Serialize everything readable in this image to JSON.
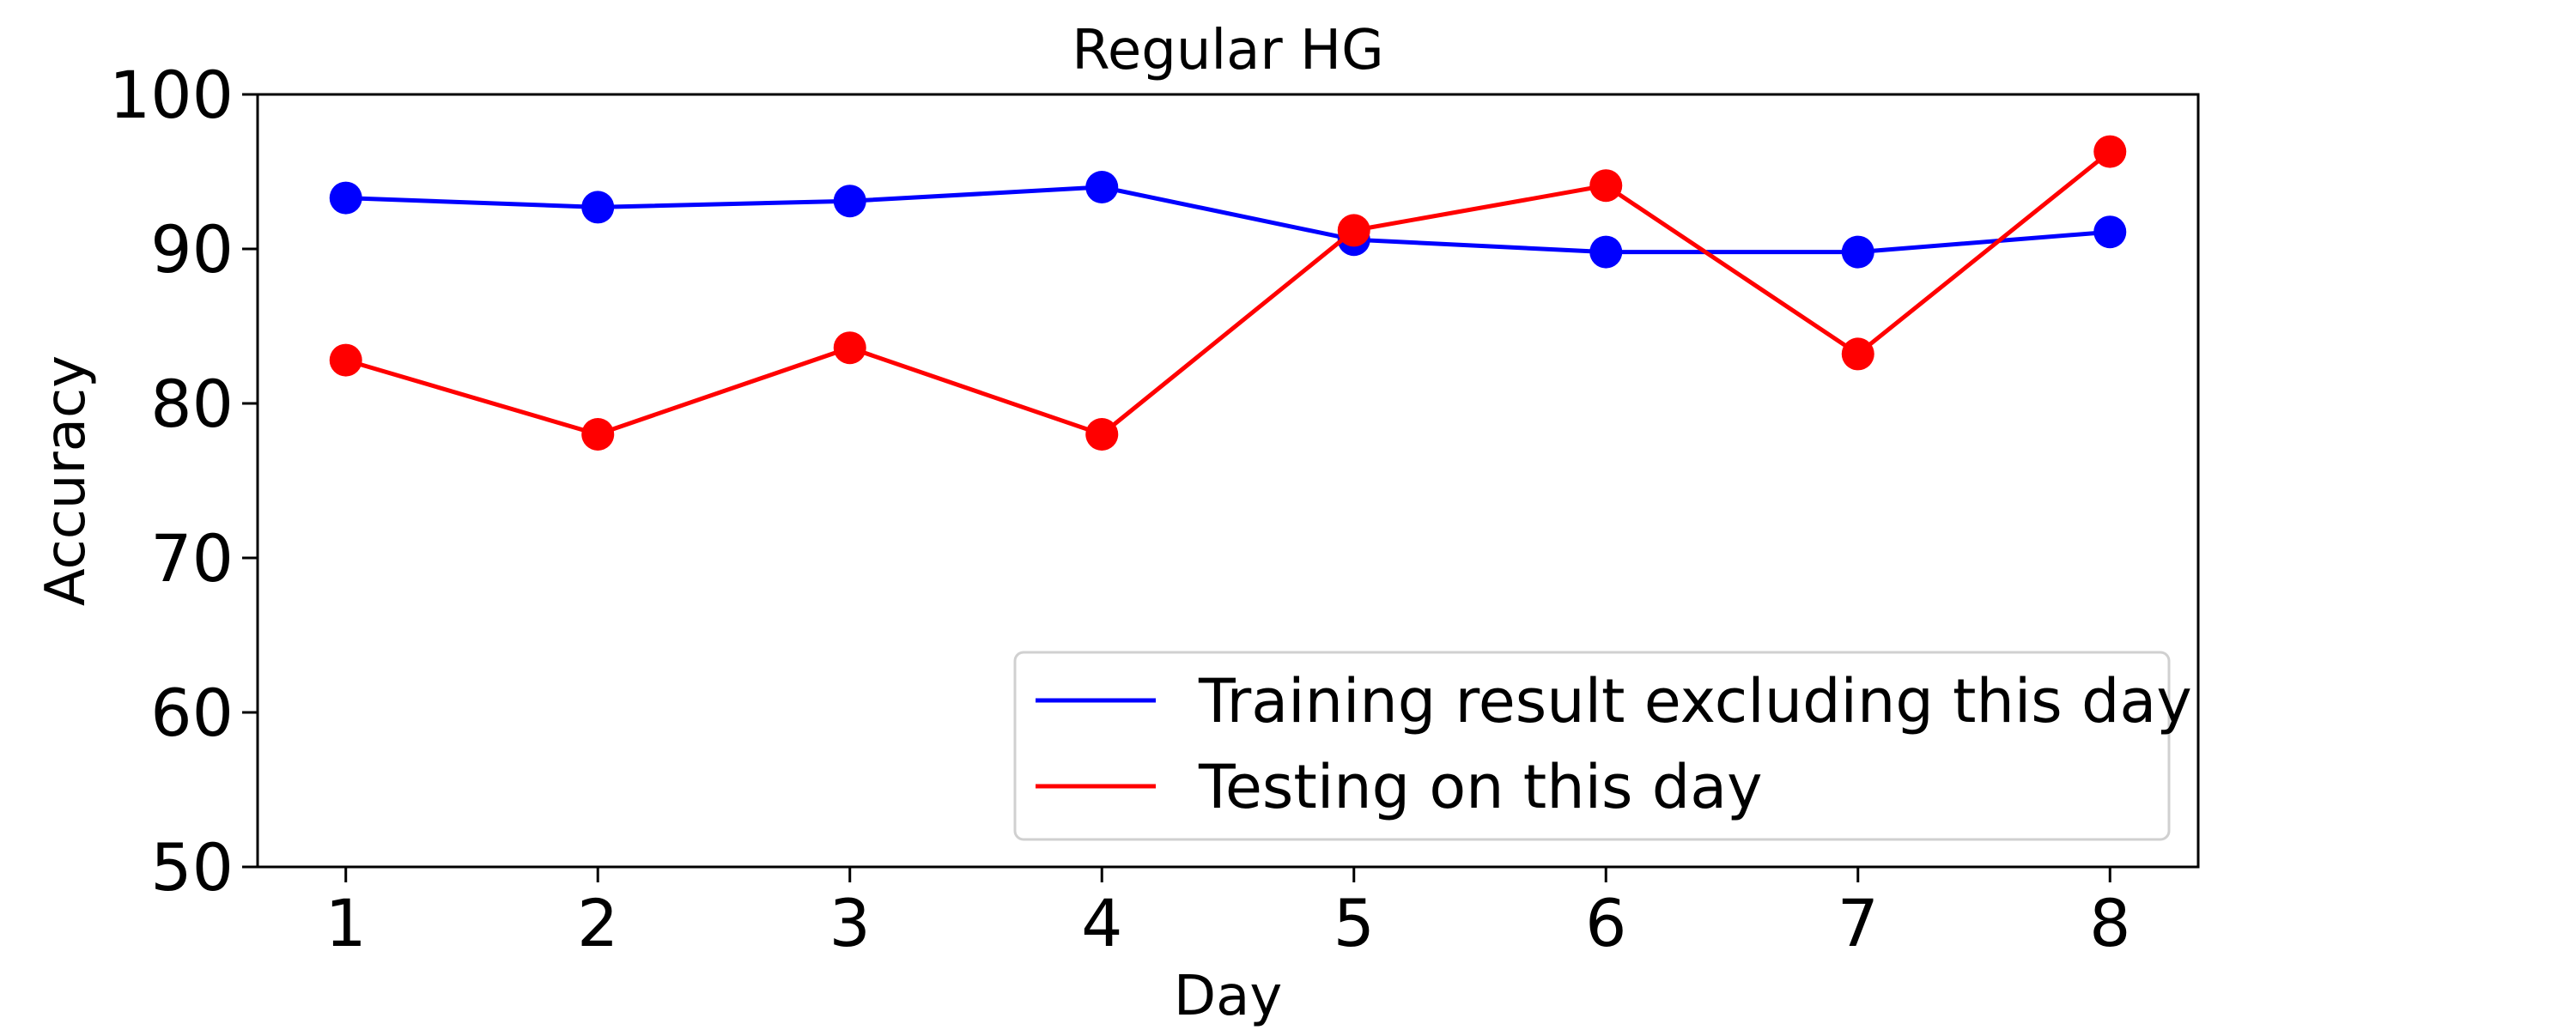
{
  "chart_data": {
    "type": "line",
    "title": "Regular HG",
    "xlabel": "Day",
    "ylabel": "Accuracy",
    "x": [
      1,
      2,
      3,
      4,
      5,
      6,
      7,
      8
    ],
    "xlim": [
      0.65,
      8.35
    ],
    "ylim": [
      50,
      100
    ],
    "xticks": [
      "1",
      "2",
      "3",
      "4",
      "5",
      "6",
      "7",
      "8"
    ],
    "yticks": [
      "50",
      "60",
      "70",
      "80",
      "90",
      "100"
    ],
    "grid": false,
    "legend_position": "lower-right",
    "series": [
      {
        "name": "Training result excluding this day",
        "color": "#0000ff",
        "values": [
          93.3,
          92.7,
          93.1,
          94.0,
          90.6,
          89.8,
          89.8,
          91.1
        ]
      },
      {
        "name": "Testing on this day",
        "color": "#ff0000",
        "values": [
          82.8,
          78.0,
          83.6,
          78.0,
          91.2,
          94.1,
          83.2,
          96.3
        ]
      }
    ]
  }
}
